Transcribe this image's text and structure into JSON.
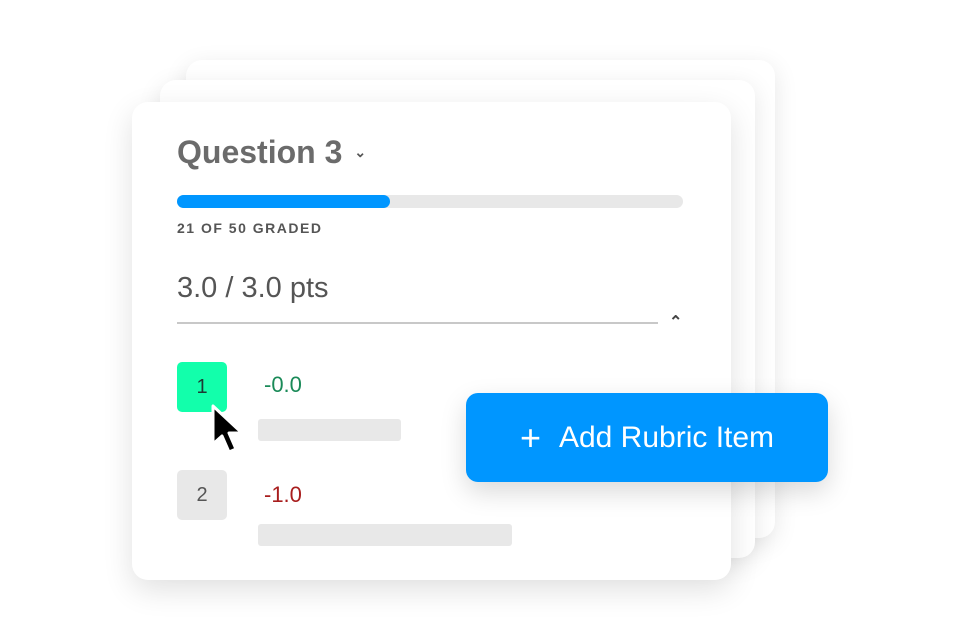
{
  "question": {
    "title": "Question 3",
    "dropdown_icon": "chevron-down-icon"
  },
  "progress": {
    "graded": 21,
    "total": 50,
    "fraction": 0.42,
    "label": "21 OF 50 GRADED",
    "color": "#0096ff"
  },
  "score": {
    "label": "3.0 / 3.0 pts",
    "collapse_icon": "chevron-up-icon"
  },
  "rubric": [
    {
      "number": "1",
      "points": "-0.0",
      "selected": true,
      "color": "#1a8a58"
    },
    {
      "number": "2",
      "points": "-1.0",
      "selected": false,
      "color": "#a81d1d"
    }
  ],
  "add_button": {
    "label": "Add Rubric Item",
    "icon": "plus-icon",
    "color": "#0096ff"
  }
}
